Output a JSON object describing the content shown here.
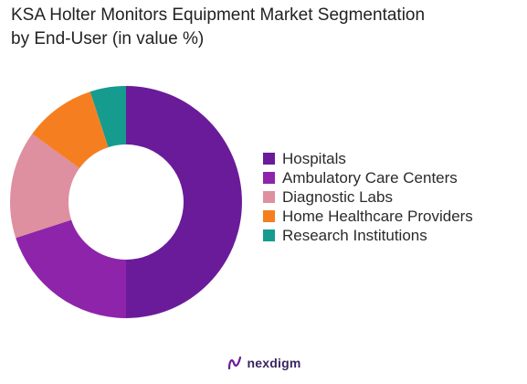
{
  "title_line1": "KSA Holter Monitors Equipment Market Segmentation",
  "title_line2": "by End-User (in value %)",
  "brand": "nexdigm",
  "brand_icon": "nexdigm-logo-icon",
  "chart_data": {
    "type": "pie",
    "variant": "donut",
    "title": "KSA Holter Monitors Equipment Market Segmentation by End-User (in value %)",
    "legend_position": "right",
    "categories": [
      "Hospitals",
      "Ambulatory Care Centers",
      "Diagnostic Labs",
      "Home Healthcare Providers",
      "Research Institutions"
    ],
    "values": [
      50,
      20,
      15,
      10,
      5
    ],
    "colors": [
      "#6a1b9a",
      "#8e24aa",
      "#de8fa0",
      "#f57f20",
      "#169b8f"
    ]
  }
}
